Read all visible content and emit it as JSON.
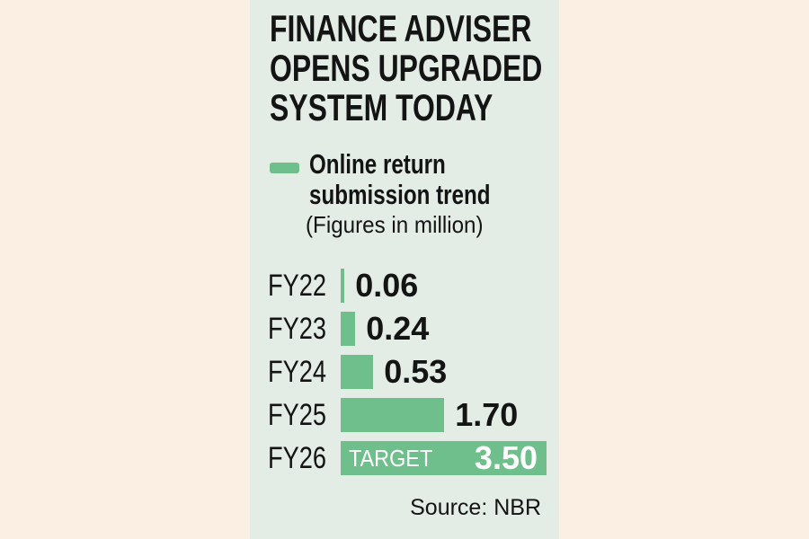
{
  "panel": {
    "title_lines": [
      "FINANCE ADVISER",
      "OPENS UPGRADED",
      "SYSTEM TODAY"
    ],
    "legend": {
      "label_line1": "Online return",
      "label_line2": "submission trend",
      "note": "(Figures in million)"
    },
    "source": "Source: NBR"
  },
  "colors": {
    "outer_bg": "#FAEFE2",
    "panel_bg": "#E3EDE5",
    "bar_green": "#6FBF8C",
    "text_black": "#141414",
    "bar_text_white": "#FFFFFF"
  },
  "chart_data": {
    "type": "bar",
    "orientation": "horizontal",
    "title": "Online return submission trend",
    "subtitle": "(Figures in million)",
    "unit": "million",
    "xlim": [
      0,
      3.5
    ],
    "grid": false,
    "legend_position": "top-left",
    "categories": [
      "FY22",
      "FY23",
      "FY24",
      "FY25",
      "FY26"
    ],
    "values": [
      0.06,
      0.24,
      0.53,
      1.7,
      3.5
    ],
    "rows": [
      {
        "category": "FY22",
        "value": 0.06,
        "value_label": "0.06",
        "annotation": "",
        "value_inside": false
      },
      {
        "category": "FY23",
        "value": 0.24,
        "value_label": "0.24",
        "annotation": "",
        "value_inside": false
      },
      {
        "category": "FY24",
        "value": 0.53,
        "value_label": "0.53",
        "annotation": "",
        "value_inside": false
      },
      {
        "category": "FY25",
        "value": 1.7,
        "value_label": "1.70",
        "annotation": "",
        "value_inside": false
      },
      {
        "category": "FY26",
        "value": 3.5,
        "value_label": "3.50",
        "annotation": "TARGET",
        "value_inside": true
      }
    ],
    "source": "Source: NBR"
  }
}
